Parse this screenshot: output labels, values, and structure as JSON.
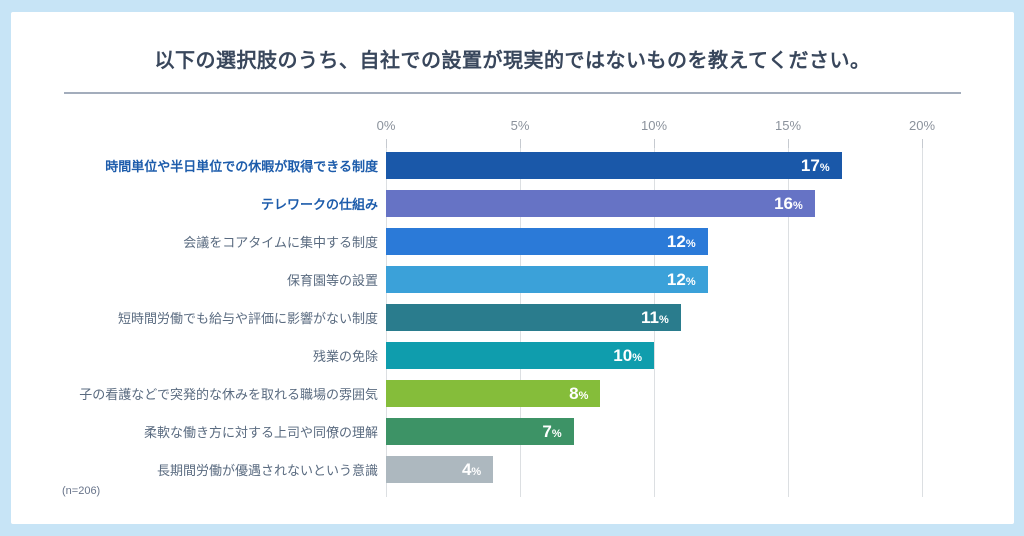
{
  "footnote": "(n=206)",
  "colors": {
    "background": "#c7e4f6",
    "card": "#ffffff",
    "title_text": "#39475c",
    "divider": "#a3adbc",
    "axis_label": "#8b929c",
    "gridline": "#dcdfe2",
    "category_label": "#5a6b80",
    "emphasized_category_label": "#1d5cab",
    "value_label": "#ffffff",
    "footnote_text": "#68748a"
  },
  "chart_data": {
    "type": "bar",
    "orientation": "horizontal",
    "title": "以下の選択肢のうち、自社での設置が現実的ではないものを教えてください。",
    "categories": [
      "時間単位や半日単位での休暇が取得できる制度",
      "テレワークの仕組み",
      "会議をコアタイムに集中する制度",
      "保育園等の設置",
      "短時間労働でも給与や評価に影響がない制度",
      "残業の免除",
      "子の看護などで突発的な休みを取れる職場の雰囲気",
      "柔軟な働き方に対する上司や同僚の理解",
      "長期間労働が優遇されないという意識"
    ],
    "values": [
      17,
      16,
      12,
      12,
      11,
      10,
      8,
      7,
      4
    ],
    "value_suffix": "%",
    "bar_colors": [
      "#1a58a9",
      "#6673c5",
      "#2b7ad8",
      "#3ba1d9",
      "#2a7c8d",
      "#0f9dad",
      "#85bd3a",
      "#3d9366",
      "#adb8bf"
    ],
    "emphasized_category_indexes": [
      0,
      1
    ],
    "x_tick_labels": [
      "0%",
      "5%",
      "10%",
      "15%",
      "20%"
    ],
    "x_tick_values": [
      0,
      5,
      10,
      15,
      20
    ],
    "xlim": [
      0,
      20
    ],
    "grid": true,
    "legend": false,
    "sample_size_note": "(n=206)"
  }
}
